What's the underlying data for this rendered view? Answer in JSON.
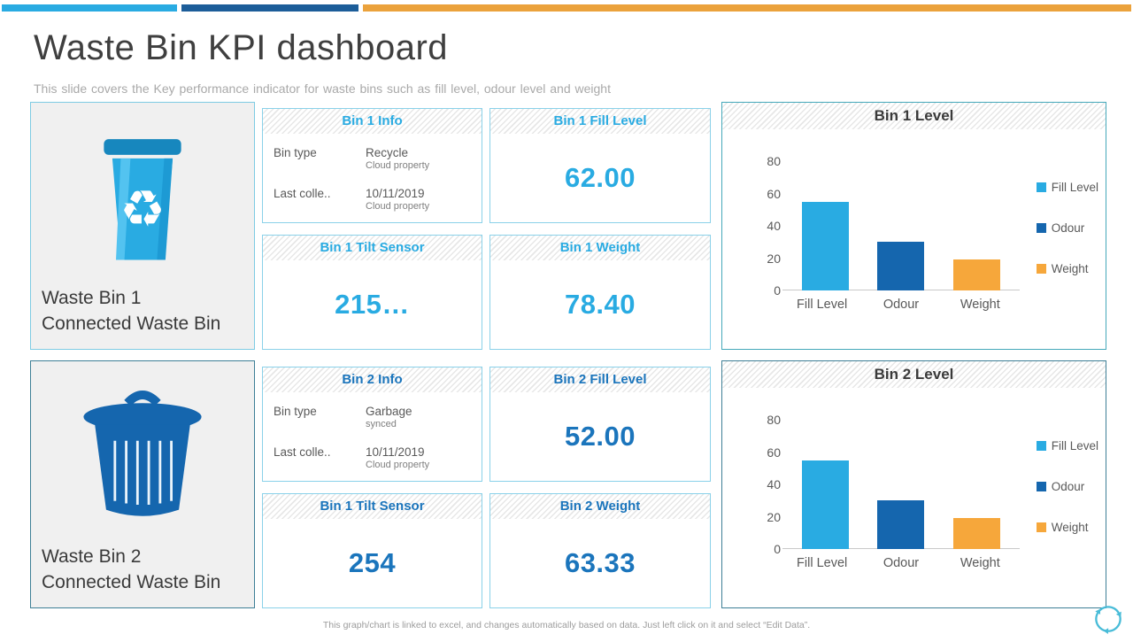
{
  "slide": {
    "title": "Waste Bin KPI dashboard",
    "subtitle": "This slide covers the Key performance indicator for waste bins such as fill level, odour level and weight",
    "footer_note": "This graph/chart is linked to excel, and changes automatically based on data. Just left click on it and select “Edit Data”."
  },
  "accent_bars": [
    {
      "name": "light-blue-bar",
      "color": "#29abe2"
    },
    {
      "name": "dark-blue-bar",
      "color": "#1c5d99"
    },
    {
      "name": "orange-bar",
      "color": "#eba23c"
    }
  ],
  "colors": {
    "bin1_accent": "#29abe2",
    "bin2_accent": "#1b75bc",
    "fill_level": "#29abe2",
    "odour": "#1566ae",
    "weight": "#f6a73b",
    "card_border": "#8ad1e9",
    "chart1_border": "#45a8ba",
    "chart2_border": "#3e7f96"
  },
  "sections": [
    {
      "bin_name": "Waste Bin 1",
      "bin_subtitle": "Connected Waste Bin",
      "bin_icon": "recycle-bin-icon",
      "info_card": {
        "title": "Bin 1 Info",
        "rows": [
          {
            "label": "Bin type",
            "value": "Recycle",
            "note": "Cloud property"
          },
          {
            "label": "Last colle..",
            "value": "10/11/2019",
            "note": "Cloud property"
          }
        ]
      },
      "fill_card": {
        "title": "Bin 1 Fill Level",
        "value": "62.00"
      },
      "tilt_card": {
        "title": "Bin 1 Tilt Sensor",
        "value": "215…"
      },
      "weight_card": {
        "title": "Bin 1 Weight",
        "value": "78.40"
      }
    },
    {
      "bin_name": "Waste Bin 2",
      "bin_subtitle": "Connected Waste Bin",
      "bin_icon": "garbage-bin-icon",
      "info_card": {
        "title": "Bin 2 Info",
        "rows": [
          {
            "label": "Bin type",
            "value": "Garbage",
            "note": "synced"
          },
          {
            "label": "Last colle..",
            "value": "10/11/2019",
            "note": "Cloud property"
          }
        ]
      },
      "fill_card": {
        "title": "Bin 2 Fill Level",
        "value": "52.00"
      },
      "tilt_card": {
        "title": "Bin 1 Tilt Sensor",
        "value": "254"
      },
      "weight_card": {
        "title": "Bin 2 Weight",
        "value": "63.33"
      }
    }
  ],
  "chart_data": [
    {
      "type": "bar",
      "title": "Bin 1 Level",
      "categories": [
        "Fill Level",
        "Odour",
        "Weight"
      ],
      "values": [
        55,
        30,
        19
      ],
      "bar_colors": [
        "#29abe2",
        "#1566ae",
        "#f6a73b"
      ],
      "ylim": [
        0,
        80
      ],
      "yticks": [
        0,
        20,
        40,
        60,
        80
      ],
      "legend": [
        {
          "label": "Fill Level",
          "color": "#29abe2"
        },
        {
          "label": "Odour",
          "color": "#1566ae"
        },
        {
          "label": "Weight",
          "color": "#f6a73b"
        }
      ],
      "legend_position": "right",
      "grid": false
    },
    {
      "type": "bar",
      "title": "Bin 2 Level",
      "categories": [
        "Fill Level",
        "Odour",
        "Weight"
      ],
      "values": [
        55,
        30,
        19
      ],
      "bar_colors": [
        "#29abe2",
        "#1566ae",
        "#f6a73b"
      ],
      "ylim": [
        0,
        80
      ],
      "yticks": [
        0,
        20,
        40,
        60,
        80
      ],
      "legend": [
        {
          "label": "Fill Level",
          "color": "#29abe2"
        },
        {
          "label": "Odour",
          "color": "#1566ae"
        },
        {
          "label": "Weight",
          "color": "#f6a73b"
        }
      ],
      "legend_position": "right",
      "grid": false
    }
  ]
}
